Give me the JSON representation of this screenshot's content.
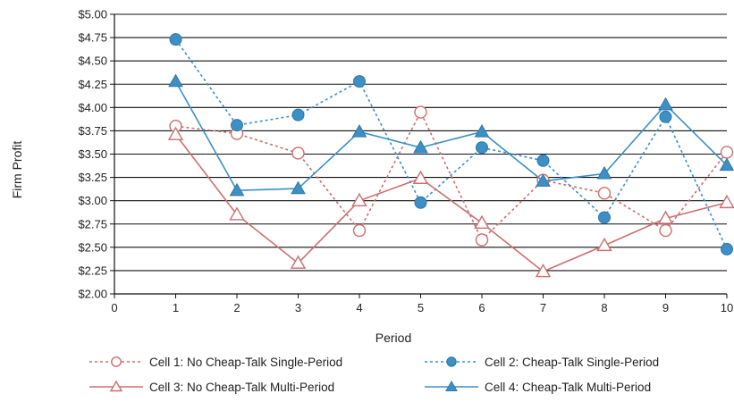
{
  "chart_data": {
    "type": "line",
    "xlabel": "Period",
    "ylabel": "Firm Profit",
    "xlim": [
      0,
      10
    ],
    "ylim": [
      2.0,
      5.0
    ],
    "x_ticks": [
      "0",
      "1",
      "2",
      "3",
      "4",
      "5",
      "6",
      "7",
      "8",
      "9",
      "10"
    ],
    "y_ticks": [
      "$2.00",
      "$2.25",
      "$2.50",
      "$2.75",
      "$3.00",
      "$3.25",
      "$3.50",
      "$3.75",
      "$4.00",
      "$4.25",
      "$4.50",
      "$4.75",
      "$5.00"
    ],
    "grid": "horizontal",
    "legend_position": "bottom",
    "x": [
      1,
      2,
      3,
      4,
      5,
      6,
      7,
      8,
      9,
      10
    ],
    "series": [
      {
        "name": "Cell 1: No Cheap-Talk Single-Period",
        "values": [
          3.8,
          3.72,
          3.51,
          2.68,
          3.95,
          2.58,
          3.22,
          3.08,
          2.68,
          3.52
        ],
        "color": "#cc6e6e",
        "line_style": "dotted",
        "marker": "open-circle"
      },
      {
        "name": "Cell 2: Cheap-Talk Single-Period",
        "values": [
          4.73,
          3.81,
          3.92,
          4.28,
          2.98,
          3.57,
          3.43,
          2.82,
          3.9,
          2.48
        ],
        "color": "#3d8fc4",
        "line_style": "dotted",
        "marker": "filled-circle"
      },
      {
        "name": "Cell 3: No Cheap-Talk Multi-Period",
        "values": [
          3.71,
          2.85,
          2.33,
          3.0,
          3.24,
          2.76,
          2.24,
          2.52,
          2.81,
          2.98
        ],
        "color": "#cc6e6e",
        "line_style": "solid",
        "marker": "open-triangle"
      },
      {
        "name": "Cell 4: Cheap-Talk Multi-Period",
        "values": [
          4.28,
          3.11,
          3.13,
          3.74,
          3.57,
          3.74,
          3.21,
          3.29,
          4.03,
          3.38
        ],
        "color": "#3d8fc4",
        "line_style": "solid",
        "marker": "filled-triangle"
      }
    ]
  }
}
